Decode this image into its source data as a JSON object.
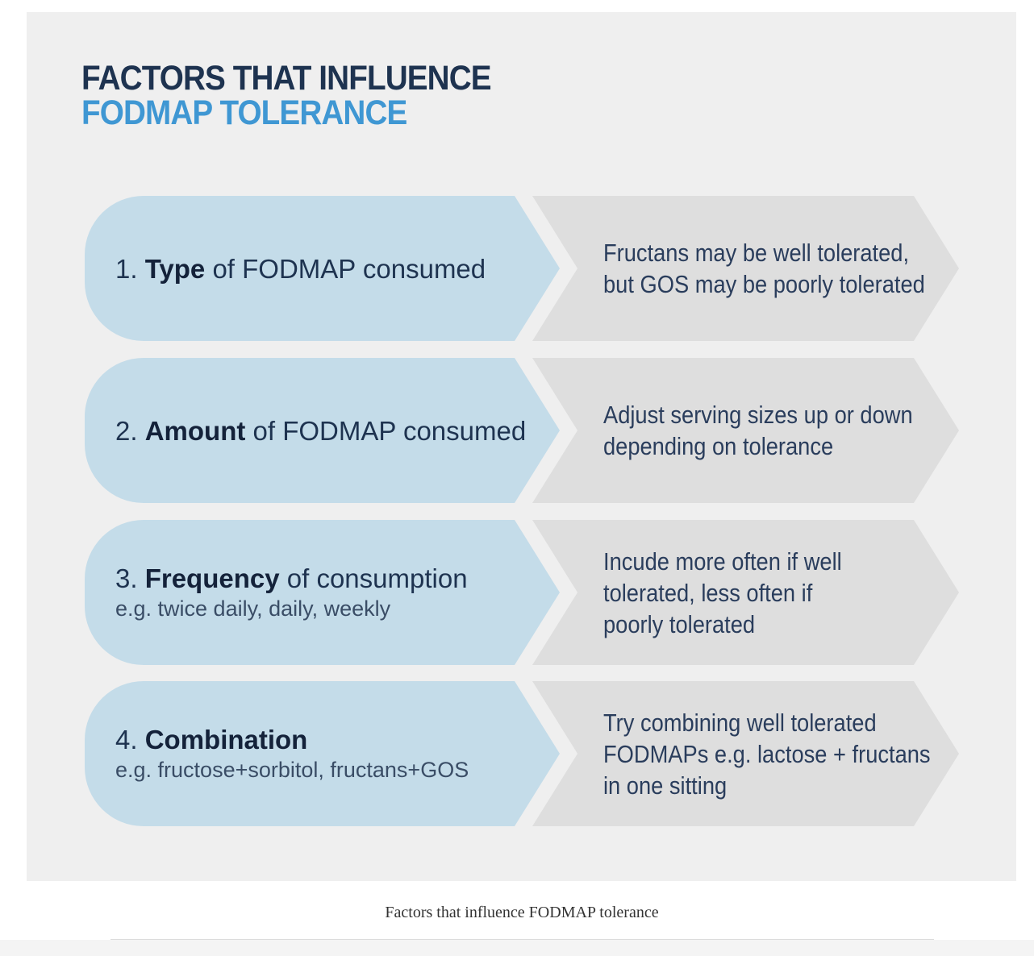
{
  "title": {
    "line1": "FACTORS THAT INFLUENCE",
    "line2": "FODMAP TOLERANCE"
  },
  "colors": {
    "title_dark": "#1e3350",
    "title_accent": "#3f97d3",
    "left_shape": "#c4dce9",
    "right_shape": "#dedede",
    "panel": "#efefef"
  },
  "factors": [
    {
      "number": "1.",
      "keyword": "Type",
      "rest": "of FODMAP consumed",
      "sub": "",
      "desc": [
        "Fructans may be well tolerated,",
        "but GOS may be poorly tolerated"
      ]
    },
    {
      "number": "2.",
      "keyword": "Amount",
      "rest": "of FODMAP consumed",
      "sub": "",
      "desc": [
        "Adjust serving sizes up or down",
        "depending on tolerance"
      ]
    },
    {
      "number": "3.",
      "keyword": "Frequency",
      "rest": "of consumption",
      "sub": "e.g. twice daily, daily, weekly",
      "desc": [
        "Incude more often if well",
        "tolerated, less often if",
        "poorly tolerated"
      ]
    },
    {
      "number": "4.",
      "keyword": "Combination",
      "rest": "",
      "sub": "e.g. fructose+sorbitol, fructans+GOS",
      "desc": [
        "Try combining well tolerated",
        "FODMAPs e.g. lactose + fructans",
        "in one sitting"
      ]
    }
  ],
  "caption": "Factors that influence FODMAP tolerance"
}
